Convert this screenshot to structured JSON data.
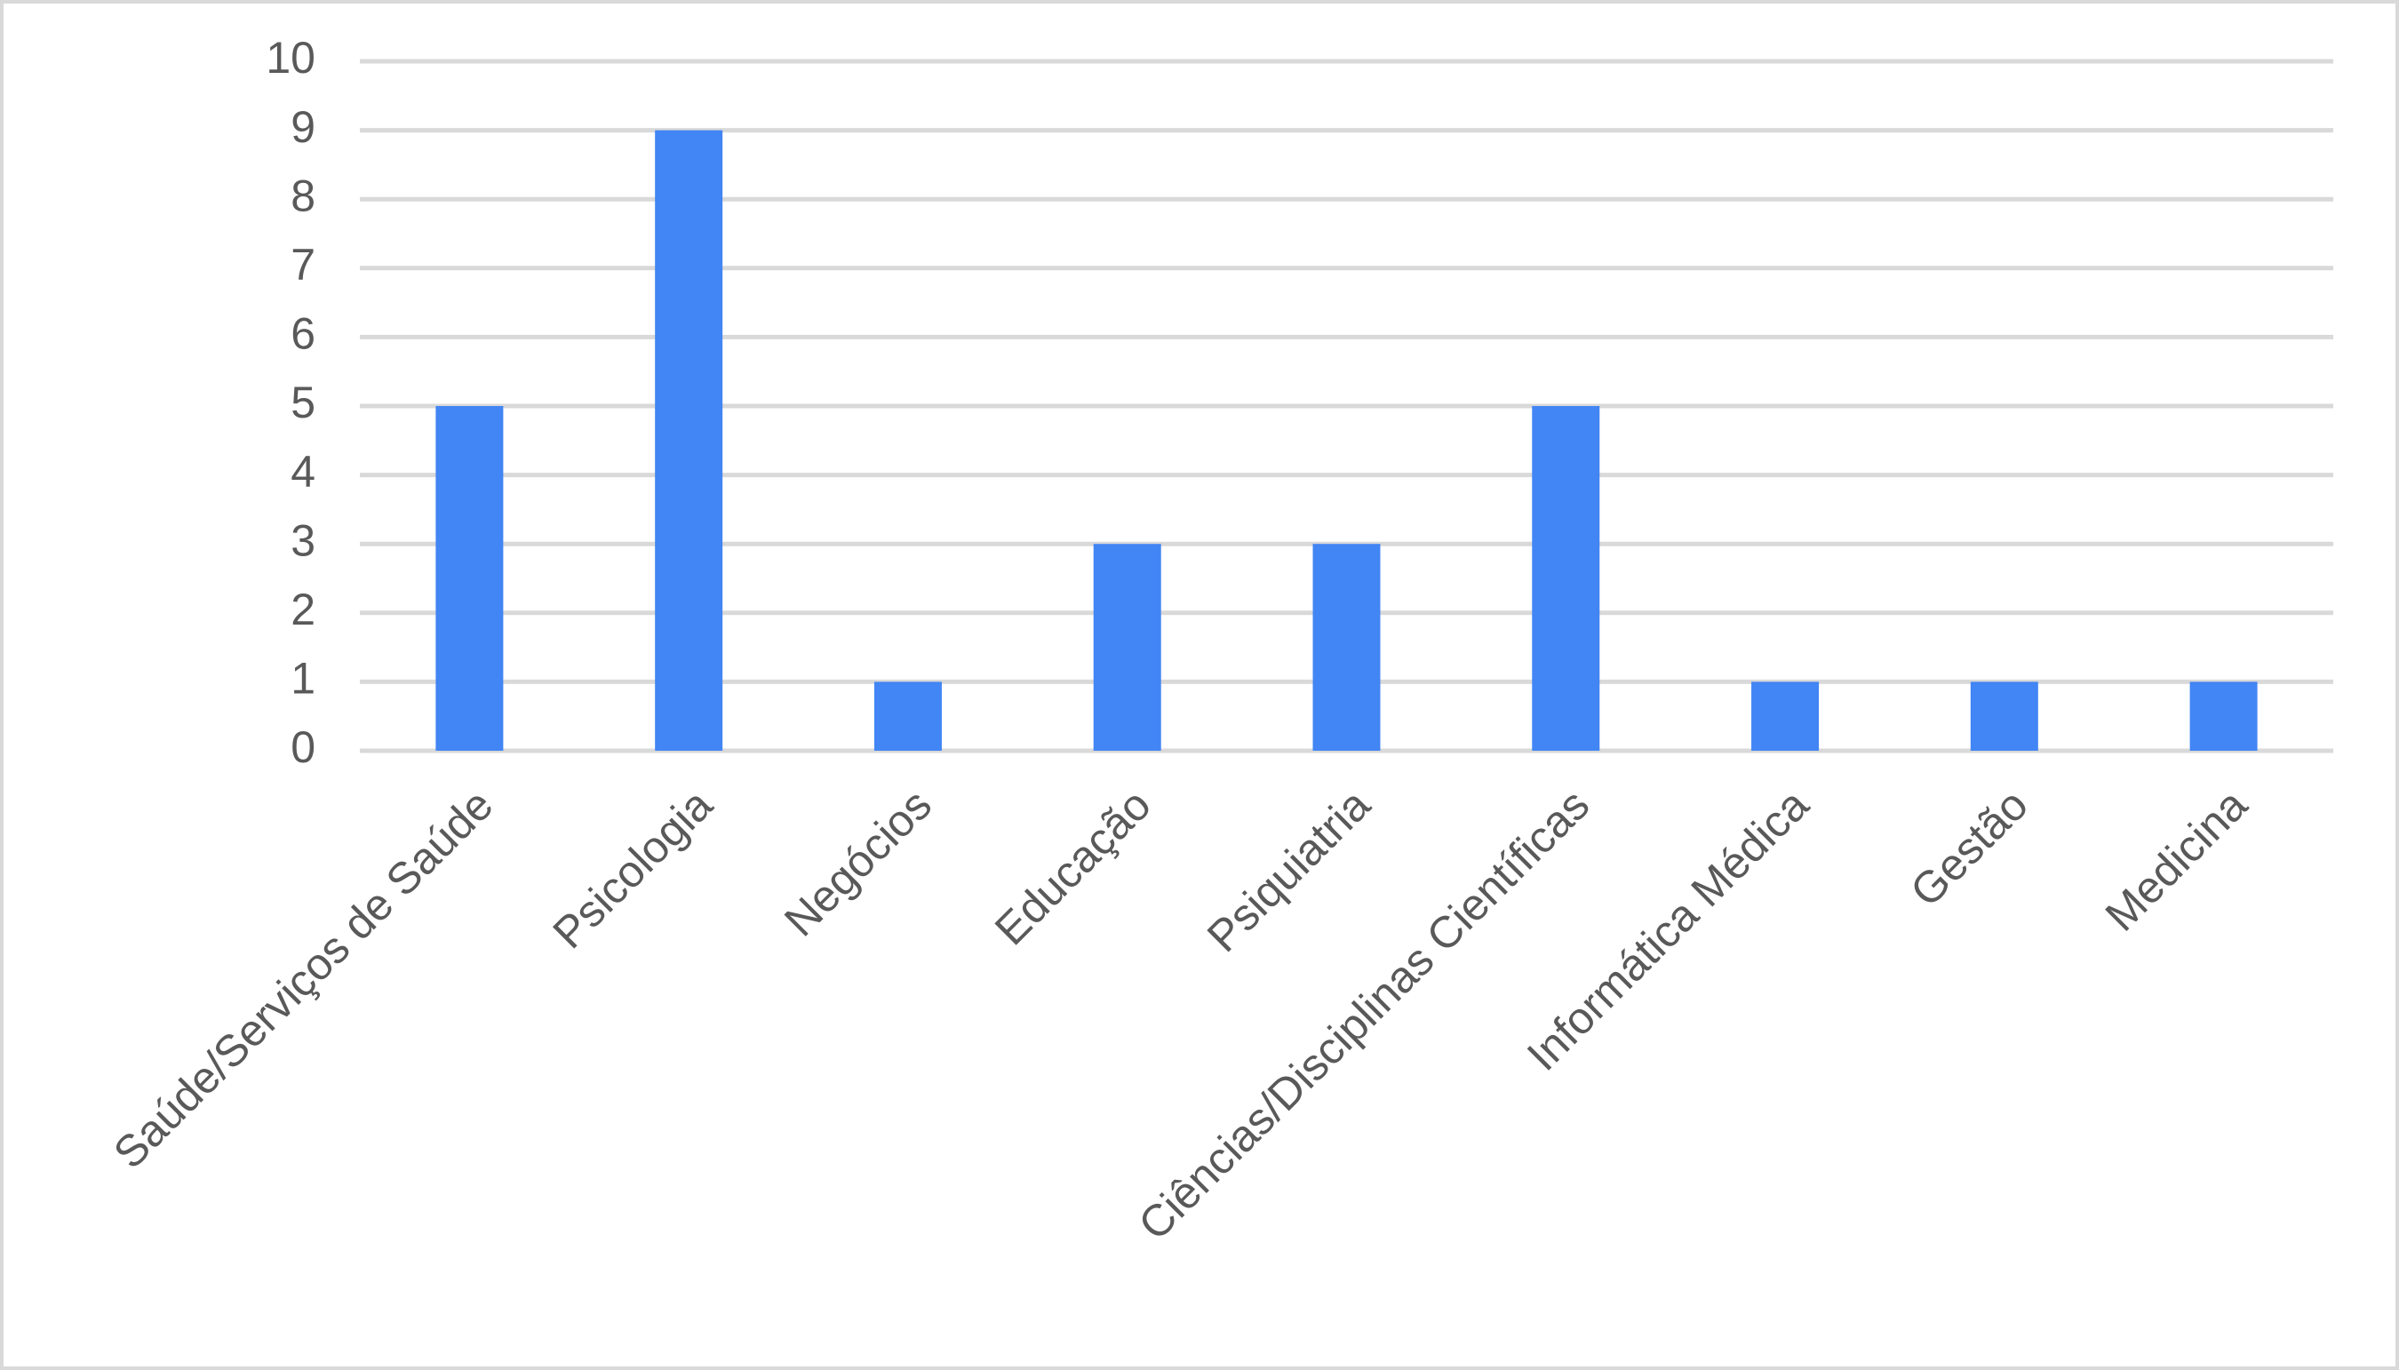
{
  "chart_data": {
    "type": "bar",
    "categories": [
      "Saúde/Serviços de Saúde",
      "Psicologia",
      "Negócios",
      "Educação",
      "Psiquiatria",
      "Ciências/Disciplinas Científicas",
      "Informática Médica",
      "Gestão",
      "Medicina"
    ],
    "values": [
      5,
      9,
      1,
      3,
      3,
      5,
      1,
      1,
      1
    ],
    "color": "#4285f4",
    "ylim": [
      0,
      10
    ],
    "yticks": [
      0,
      1,
      2,
      3,
      4,
      5,
      6,
      7,
      8,
      9,
      10
    ],
    "grid": true
  }
}
